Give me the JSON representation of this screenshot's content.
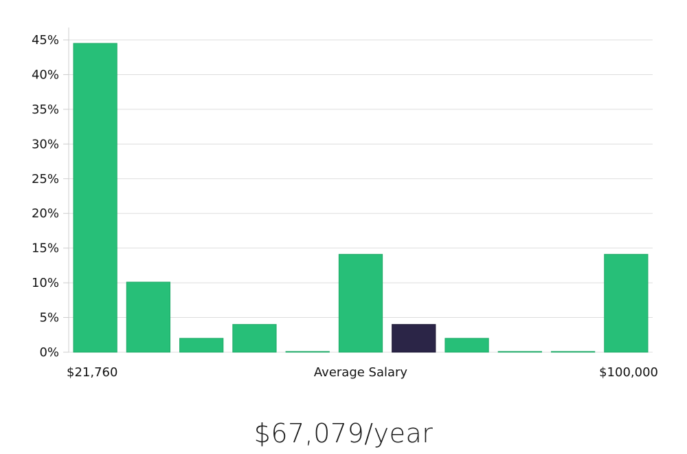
{
  "chart_data": {
    "type": "bar",
    "categories": [
      "1",
      "2",
      "3",
      "4",
      "5",
      "6",
      "7",
      "8",
      "9",
      "10",
      "11"
    ],
    "values": [
      44.5,
      10.1,
      2.0,
      4.0,
      0.1,
      14.1,
      4.0,
      2.0,
      0.1,
      0.1,
      14.1
    ],
    "highlight_index": 6,
    "ylim": [
      0,
      45
    ],
    "yticks": [
      0,
      5,
      10,
      15,
      20,
      25,
      30,
      35,
      40,
      45
    ],
    "ytick_format": "percent",
    "x_min_label": "$21,760",
    "xlabel": "Average Salary",
    "x_max_label": "$100,000",
    "grid": true,
    "colors": {
      "bar": "#27bf78",
      "bar_edge": "#1faa67",
      "highlight": "#2b2547",
      "grid": "#dddddd",
      "axis": "#cccccc"
    }
  },
  "salary_text": "$67,079/year"
}
